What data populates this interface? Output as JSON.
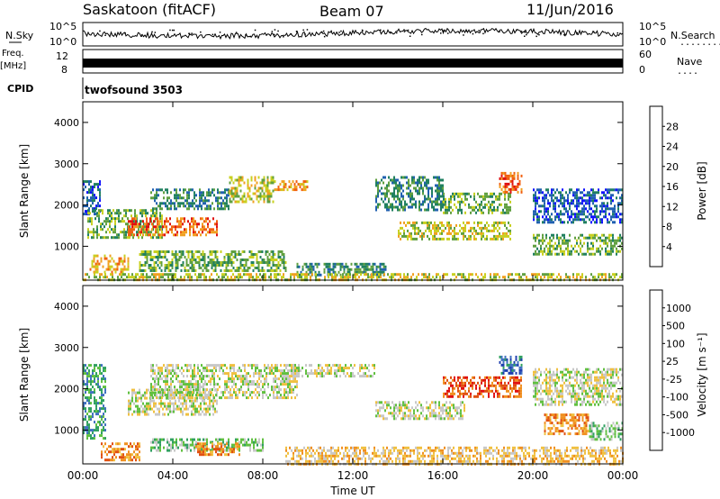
{
  "header": {
    "station": "Saskatoon (fitACF)",
    "beam": "Beam 07",
    "date": "11/Jun/2016"
  },
  "top_panels": {
    "nsky_label": "N.Sky",
    "nsearch_label": "N.Search",
    "nsearch_dots": "........",
    "nsky_ticks": [
      "10^5",
      "10^0"
    ],
    "freq_label_1": "Freq.",
    "freq_label_2": "[MHz]",
    "freq_ticks": [
      "12",
      "8"
    ],
    "nave_label": "Nave",
    "nave_dots": "....",
    "nave_ticks": [
      "60",
      "0"
    ],
    "cpid_label": "CPID",
    "cpid_value": "twofsound 3503"
  },
  "axes": {
    "ylabel": "Slant Range [km]",
    "xlabel": "Time UT",
    "y_ticks": [
      "1000",
      "2000",
      "3000",
      "4000"
    ],
    "x_ticks": [
      "00:00",
      "04:00",
      "08:00",
      "12:00",
      "16:00",
      "20:00",
      "00:00"
    ]
  },
  "chart_data": [
    {
      "type": "heatmap",
      "name": "Power",
      "colorbar_label": "Power [dB]",
      "colorbar_ticks": [
        "4",
        "8",
        "12",
        "16",
        "20",
        "24",
        "28"
      ],
      "colors": [
        "#1010ff",
        "#2060b0",
        "#208060",
        "#60a040",
        "#c8d020",
        "#f0a020",
        "#f06010",
        "#e01010"
      ],
      "x_range": [
        "00:00",
        "24:00"
      ],
      "y_range_km": [
        180,
        4500
      ],
      "regions": [
        {
          "t": [
            0.0,
            0.8
          ],
          "r": [
            1800,
            2600
          ],
          "level": 1
        },
        {
          "t": [
            0.3,
            2.0
          ],
          "r": [
            400,
            800
          ],
          "level": 5
        },
        {
          "t": [
            0.2,
            3.5
          ],
          "r": [
            1200,
            1900
          ],
          "level": 3
        },
        {
          "t": [
            2.0,
            6.0
          ],
          "r": [
            1300,
            1700
          ],
          "level": 6
        },
        {
          "t": [
            3.0,
            6.5
          ],
          "r": [
            1900,
            2400
          ],
          "level": 2
        },
        {
          "t": [
            6.5,
            8.5
          ],
          "r": [
            2100,
            2700
          ],
          "level": 4
        },
        {
          "t": [
            8.5,
            10.0
          ],
          "r": [
            2350,
            2600
          ],
          "level": 5
        },
        {
          "t": [
            2.5,
            9.0
          ],
          "r": [
            400,
            900
          ],
          "level": 3
        },
        {
          "t": [
            9.5,
            13.5
          ],
          "r": [
            300,
            600
          ],
          "level": 2
        },
        {
          "t": [
            13.0,
            16.0
          ],
          "r": [
            1900,
            2700
          ],
          "level": 2
        },
        {
          "t": [
            14.0,
            19.0
          ],
          "r": [
            1200,
            1600
          ],
          "level": 4
        },
        {
          "t": [
            16.0,
            19.0
          ],
          "r": [
            1800,
            2300
          ],
          "level": 3
        },
        {
          "t": [
            18.5,
            19.5
          ],
          "r": [
            2300,
            2800
          ],
          "level": 6
        },
        {
          "t": [
            20.0,
            24.0
          ],
          "r": [
            1600,
            2400
          ],
          "level": 1
        },
        {
          "t": [
            20.0,
            24.0
          ],
          "r": [
            800,
            1300
          ],
          "level": 3
        },
        {
          "t": [
            0.0,
            24.0
          ],
          "r": [
            180,
            350
          ],
          "level": 4
        }
      ]
    },
    {
      "type": "heatmap",
      "name": "Velocity",
      "colorbar_label": "Velocity [m s⁻¹]",
      "colorbar_ticks": [
        "1000",
        "500",
        "100",
        "25",
        "-25",
        "-100",
        "-500",
        "-1000"
      ],
      "colors": [
        "#2040b0",
        "#4070c0",
        "#30a060",
        "#60c040",
        "#c8c8c8",
        "#f0c040",
        "#f09020",
        "#e05010",
        "#e01010"
      ],
      "x_range": [
        "00:00",
        "24:00"
      ],
      "y_range_km": [
        180,
        4500
      ],
      "regions": [
        {
          "t": [
            0.0,
            1.0
          ],
          "r": [
            800,
            2600
          ],
          "level": 2
        },
        {
          "t": [
            0.8,
            2.5
          ],
          "r": [
            300,
            700
          ],
          "level": 6
        },
        {
          "t": [
            2.0,
            6.0
          ],
          "r": [
            1400,
            2000
          ],
          "level": 4
        },
        {
          "t": [
            3.0,
            9.5
          ],
          "r": [
            1800,
            2600
          ],
          "level": 4
        },
        {
          "t": [
            9.0,
            13.0
          ],
          "r": [
            2300,
            2600
          ],
          "level": 4
        },
        {
          "t": [
            3.0,
            8.0
          ],
          "r": [
            500,
            800
          ],
          "level": 3
        },
        {
          "t": [
            5.0,
            7.0
          ],
          "r": [
            400,
            700
          ],
          "level": 6
        },
        {
          "t": [
            9.0,
            24.0
          ],
          "r": [
            200,
            600
          ],
          "level": 5
        },
        {
          "t": [
            13.0,
            17.0
          ],
          "r": [
            1300,
            1700
          ],
          "level": 4
        },
        {
          "t": [
            16.0,
            19.5
          ],
          "r": [
            1800,
            2300
          ],
          "level": 7
        },
        {
          "t": [
            18.5,
            19.5
          ],
          "r": [
            2400,
            2800
          ],
          "level": 1
        },
        {
          "t": [
            20.0,
            24.0
          ],
          "r": [
            1600,
            2500
          ],
          "level": 4
        },
        {
          "t": [
            20.5,
            22.5
          ],
          "r": [
            900,
            1400
          ],
          "level": 6
        },
        {
          "t": [
            22.5,
            24.0
          ],
          "r": [
            800,
            1200
          ],
          "level": 3
        }
      ]
    }
  ]
}
